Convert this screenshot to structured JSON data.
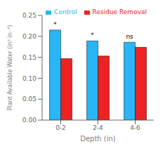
{
  "chart_data": {
    "type": "bar",
    "categories": [
      "0-2",
      "2-4",
      "4-6"
    ],
    "series": [
      {
        "name": "Control",
        "color": "#29B6F6",
        "values": [
          0.215,
          0.189,
          0.186
        ],
        "annotations": [
          "*",
          "*",
          "ns"
        ]
      },
      {
        "name": "Residue Removal",
        "color": "#EE2222",
        "values": [
          0.147,
          0.153,
          0.174
        ]
      }
    ],
    "xlabel": "Depth (in)",
    "ylabel": "Plant Available Water (in³ in⁻³)",
    "ylim": [
      0.0,
      0.25
    ],
    "yticks": [
      {
        "value": 0.0,
        "label": "0.00"
      },
      0.05,
      {
        "value": 0.1,
        "label": "0.10"
      },
      0.15,
      {
        "value": 0.2,
        "label": "0.20"
      },
      0.25
    ],
    "legend": "upper right",
    "grid": false
  }
}
